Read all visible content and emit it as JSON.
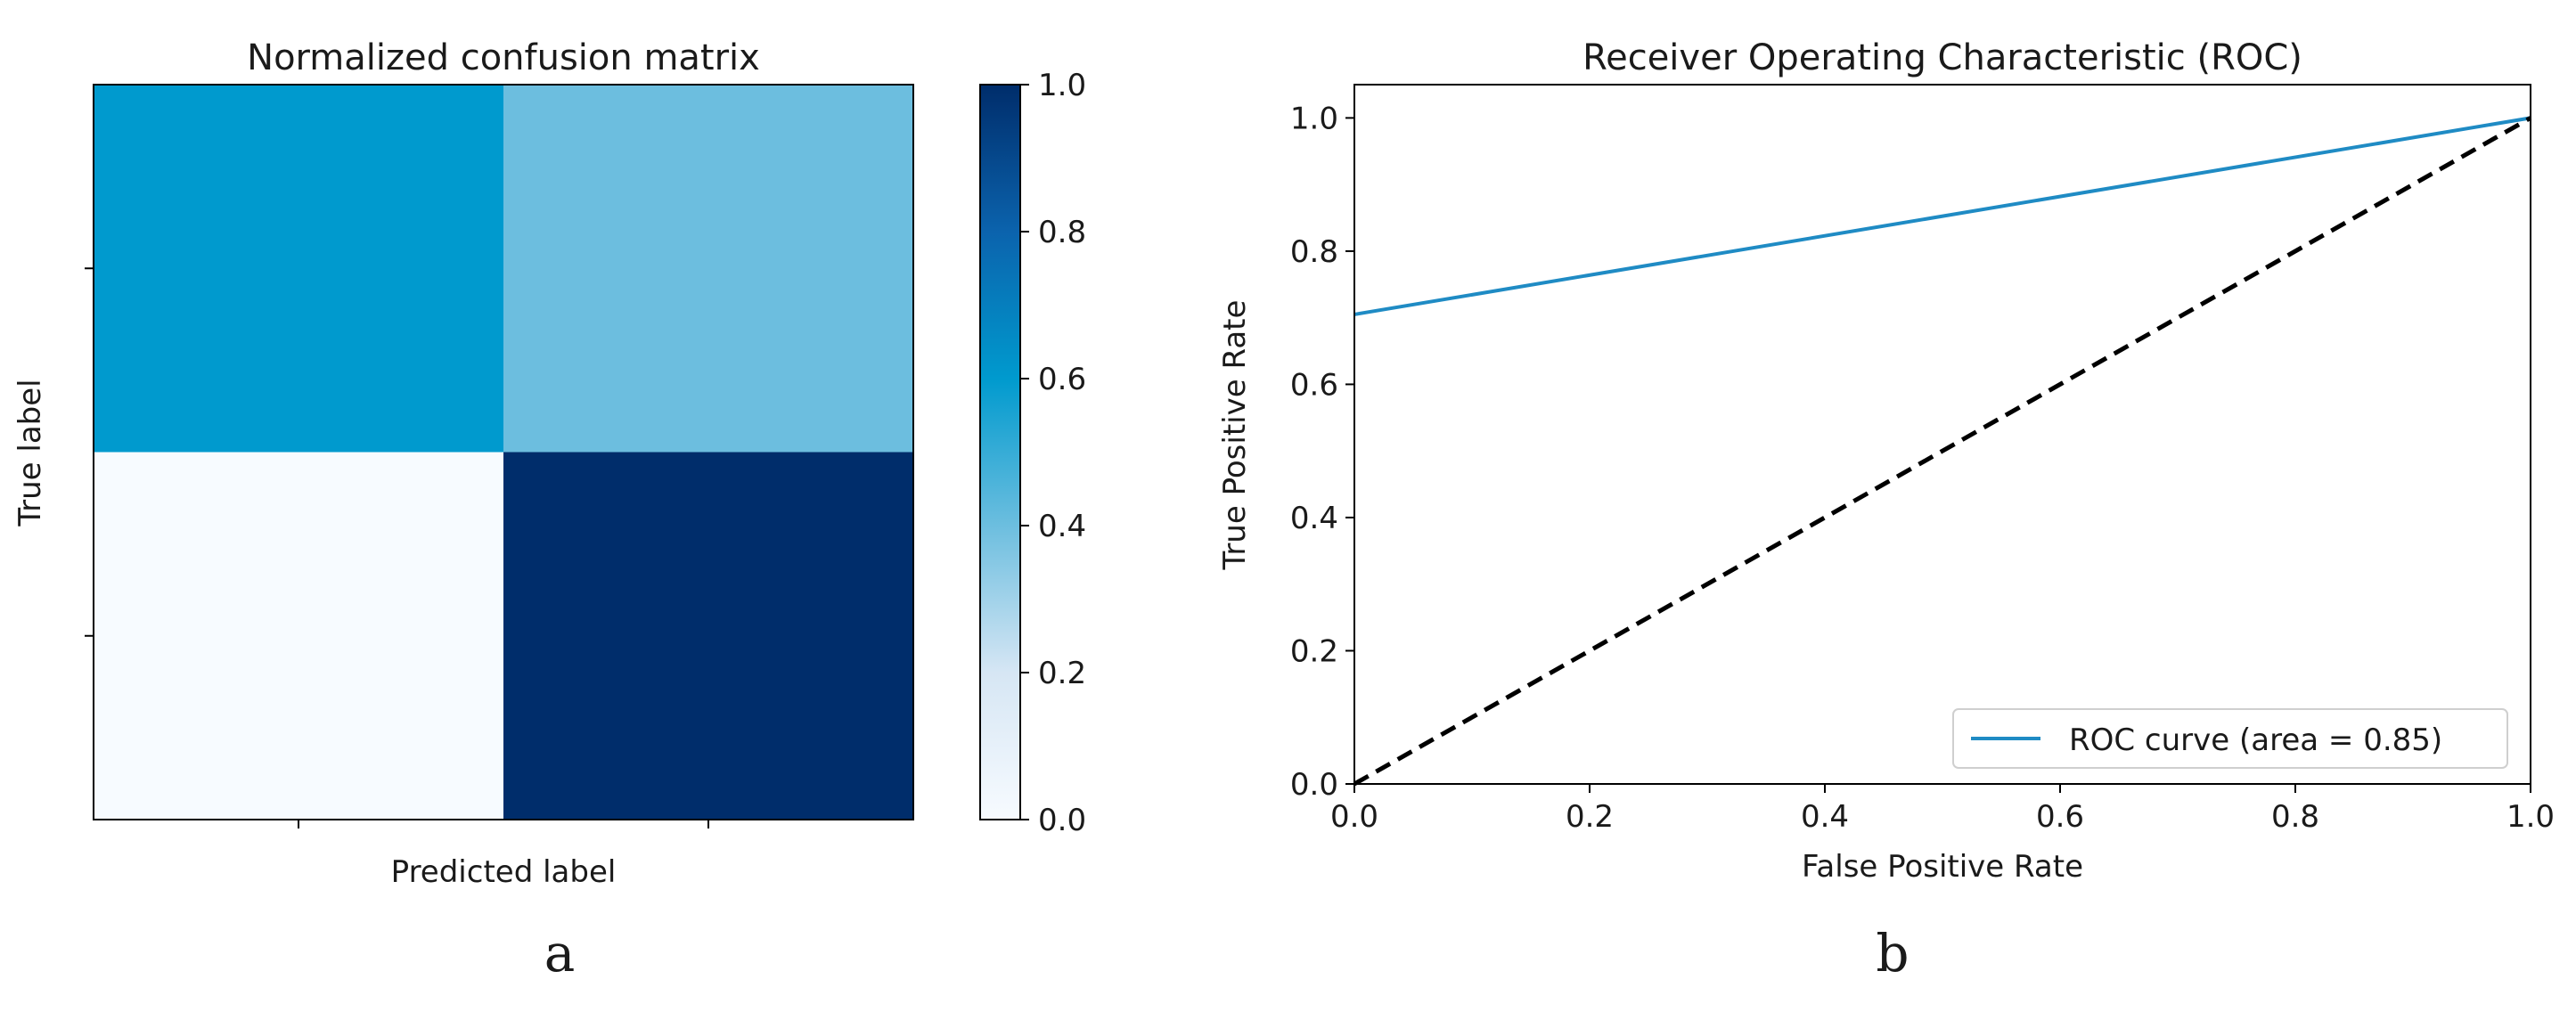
{
  "chart_data": [
    {
      "type": "heatmap",
      "panel_label": "a",
      "title": "Normalized confusion matrix",
      "xlabel": "Predicted label",
      "ylabel": "True label",
      "rows": 2,
      "cols": 2,
      "values": [
        [
          0.6,
          0.4
        ],
        [
          0.0,
          1.0
        ]
      ],
      "colormap": "Blues",
      "colorbar": {
        "range": [
          0.0,
          1.0
        ],
        "ticks": [
          0.0,
          0.2,
          0.4,
          0.6,
          0.8,
          1.0
        ],
        "tick_labels": [
          "0.0",
          "0.2",
          "0.4",
          "0.6",
          "0.8",
          "1.0"
        ]
      }
    },
    {
      "type": "line",
      "panel_label": "b",
      "title": "Receiver Operating Characteristic (ROC)",
      "xlabel": "False Positive Rate",
      "ylabel": "True Positive Rate",
      "xlim": [
        0.0,
        1.0
      ],
      "ylim": [
        0.0,
        1.05
      ],
      "xticks": [
        0.0,
        0.2,
        0.4,
        0.6,
        0.8,
        1.0
      ],
      "xtick_labels": [
        "0.0",
        "0.2",
        "0.4",
        "0.6",
        "0.8",
        "1.0"
      ],
      "yticks": [
        0.0,
        0.2,
        0.4,
        0.6,
        0.8,
        1.0
      ],
      "ytick_labels": [
        "0.0",
        "0.2",
        "0.4",
        "0.6",
        "0.8",
        "1.0"
      ],
      "legend_position": "lower-right",
      "series": [
        {
          "name": "ROC curve (area = 0.85)",
          "x": [
            0.0,
            1.0
          ],
          "y": [
            0.705,
            1.0
          ],
          "color": "#1f8bc4",
          "style": "solid"
        },
        {
          "x": [
            0.0,
            1.0
          ],
          "y": [
            0.0,
            1.0
          ],
          "color": "#000000",
          "style": "dashed"
        }
      ]
    }
  ]
}
